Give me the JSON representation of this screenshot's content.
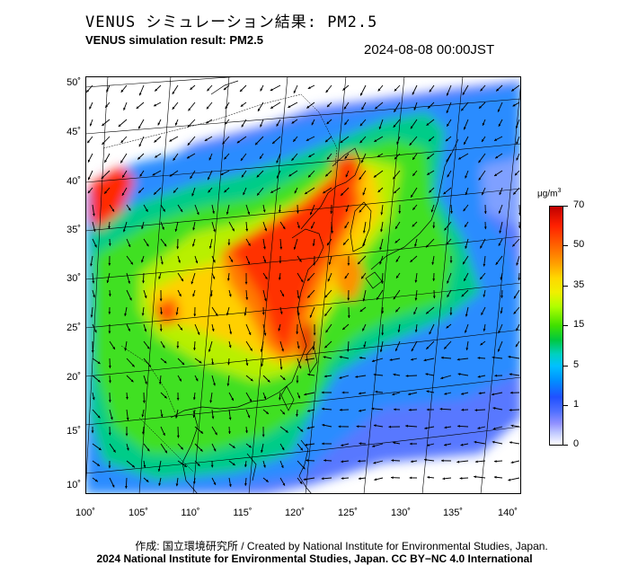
{
  "header": {
    "title_ja": "VENUS シミュレーション結果: PM2.5",
    "title_en": "VENUS simulation result: PM2.5",
    "datetime": "2024-08-08 00:00JST"
  },
  "map": {
    "lat_labels": [
      "50˚",
      "45˚",
      "40˚",
      "35˚",
      "30˚",
      "25˚",
      "20˚",
      "15˚",
      "10˚"
    ],
    "lon_labels": [
      "100˚",
      "105˚",
      "110˚",
      "115˚",
      "120˚",
      "125˚",
      "130˚",
      "135˚",
      "140˚"
    ]
  },
  "colorbar": {
    "unit": "μg/m",
    "unit_sup": "3",
    "labels": [
      "70",
      "50",
      "35",
      "15",
      "5",
      "1",
      "0"
    ],
    "colors": [
      "#c00000",
      "#ff6000",
      "#ffd800",
      "#40e000",
      "#00c0ff",
      "#2050ff",
      "#ffffff"
    ]
  },
  "footer": {
    "credit": "作成: 国立環境研究所 / Created by National Institute for Environmental Studies, Japan.",
    "copyright": "2024 National Institute for Environmental Studies, Japan. CC BY−NC 4.0 International"
  }
}
